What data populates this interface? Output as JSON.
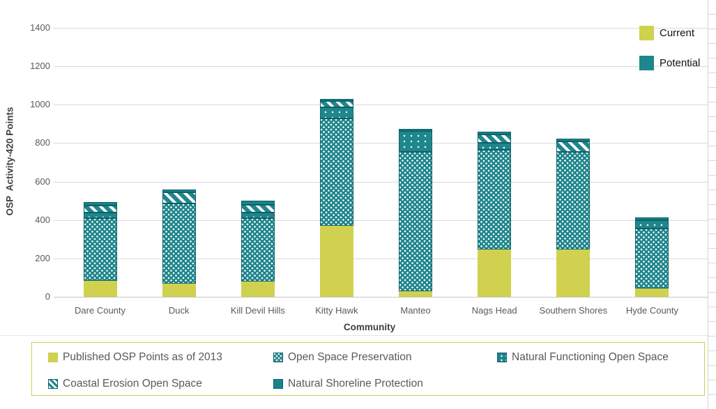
{
  "colors": {
    "current_yellow": "#cfd14f",
    "potential_teal": "#1e868c",
    "solid_cap_teal": "#17848b",
    "segment_border": "#0f5f66",
    "gridline": "#d9d9d9",
    "axis_text": "#595959",
    "legend_box_border": "#ccd04e"
  },
  "top_legend": {
    "current_label": "Current",
    "potential_label": "Potential"
  },
  "bottom_legend": {
    "items": [
      {
        "label": "Published OSP Points as of 2013",
        "pattern": "solid-yellow"
      },
      {
        "label": "Open Space Preservation",
        "pattern": "dense-dots"
      },
      {
        "label": "Natural Functioning Open Space",
        "pattern": "sparse-dots"
      },
      {
        "label": "Coastal Erosion Open Space",
        "pattern": "diagonal-stripes"
      },
      {
        "label": "Natural Shoreline Protection",
        "pattern": "solid-teal"
      }
    ]
  },
  "chart_data": {
    "type": "bar",
    "stacked": true,
    "title": "",
    "xlabel": "Community",
    "ylabel": "OSP  Activity-420 Points",
    "ylim": [
      0,
      1400
    ],
    "ytick_step": 200,
    "yticks": [
      0,
      200,
      400,
      600,
      800,
      1000,
      1200,
      1400
    ],
    "grid": "horizontal",
    "legend_position": "top-right and bottom box",
    "categories": [
      "Dare County",
      "Duck",
      "Kill Devil Hills",
      "Kitty Hawk",
      "Manteo",
      "Nags Head",
      "Southern Shores",
      "Hyde County"
    ],
    "series": [
      {
        "name": "Published OSP Points as of 2013",
        "pattern": "solid-yellow",
        "values": [
          85,
          70,
          80,
          370,
          30,
          245,
          245,
          45
        ]
      },
      {
        "name": "Open Space Preservation",
        "pattern": "dense-dots",
        "values": [
          325,
          415,
          330,
          560,
          725,
          520,
          510,
          310
        ]
      },
      {
        "name": "Natural Functioning Open Space",
        "pattern": "sparse-dots",
        "values": [
          30,
          0,
          30,
          55,
          110,
          35,
          0,
          45
        ]
      },
      {
        "name": "Coastal Erosion Open Space",
        "pattern": "diagonal-stripes",
        "values": [
          35,
          60,
          40,
          35,
          0,
          45,
          55,
          0
        ]
      },
      {
        "name": "Natural Shoreline Protection",
        "pattern": "solid-teal",
        "values": [
          20,
          15,
          20,
          10,
          10,
          15,
          15,
          15
        ]
      }
    ],
    "totals": [
      495,
      560,
      500,
      1030,
      875,
      860,
      825,
      415
    ]
  }
}
